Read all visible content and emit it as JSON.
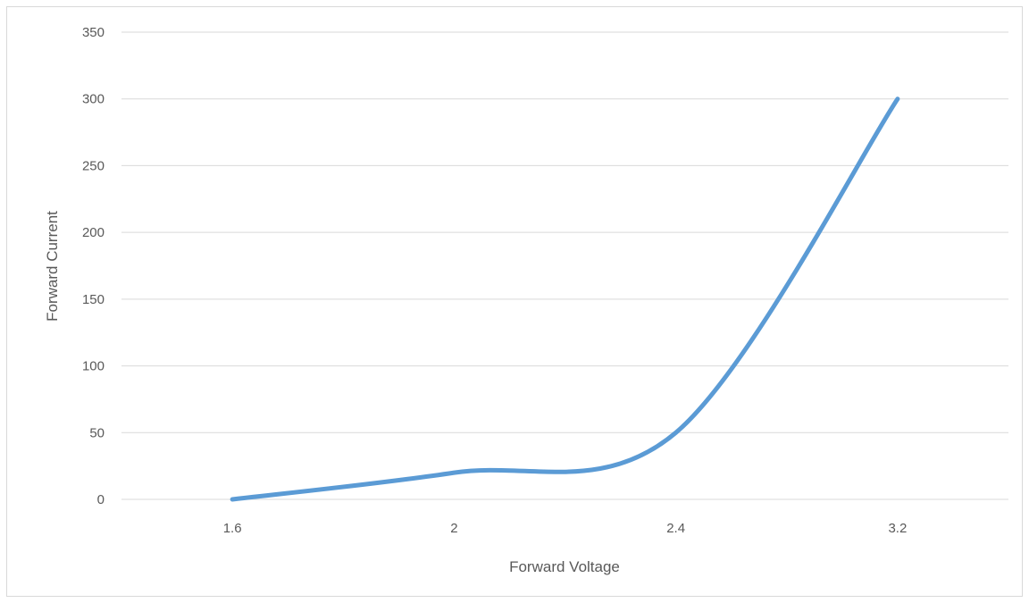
{
  "chart_data": {
    "type": "line",
    "title": "",
    "xlabel": "Forward Voltage",
    "ylabel": "Forward Current",
    "categories": [
      "1.6",
      "2",
      "2.4",
      "3.2"
    ],
    "series": [
      {
        "values": [
          0,
          20,
          50,
          300
        ],
        "color": "#5b9bd5",
        "smooth": true
      }
    ],
    "ylim": [
      0,
      350
    ],
    "yticks": [
      "0",
      "50",
      "100",
      "150",
      "200",
      "250",
      "300",
      "350"
    ],
    "grid": true,
    "legend": "none",
    "gridline_color": "#d9d9d9",
    "text_color": "#595959"
  }
}
